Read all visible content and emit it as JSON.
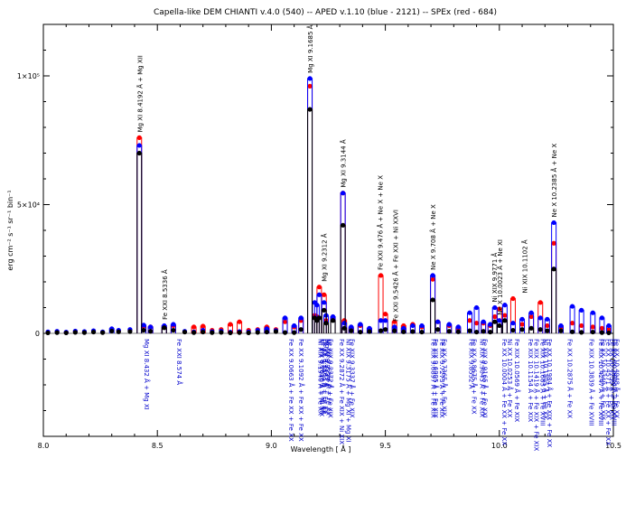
{
  "chart_data": {
    "type": "line",
    "title": "Capella-like DEM  CHIANTI v.4.0 (540) -- APED v.1.10 (blue - 2121) -- SPEx (red - 684)",
    "xlabel": "Wavelength [ Å ]",
    "ylabel": "erg cm⁻² s⁻¹ sr⁻¹ bin⁻¹",
    "xlim": [
      8.0,
      10.5
    ],
    "ylim": [
      -40000,
      120000
    ],
    "x_ticks": [
      8.0,
      8.5,
      9.0,
      9.5,
      10.0,
      10.5
    ],
    "x_tick_labels": [
      "8.0",
      "8.5",
      "9.0",
      "9.5",
      "10.0",
      "10.5"
    ],
    "y_ticks": [
      0,
      50000,
      100000
    ],
    "y_tick_labels": [
      "0",
      "5×10⁴",
      "1×10⁵"
    ],
    "series": [
      {
        "color": "#000000",
        "x": [
          8.02,
          8.06,
          8.1,
          8.14,
          8.18,
          8.22,
          8.26,
          8.3,
          8.33,
          8.38,
          8.421,
          8.44,
          8.47,
          8.53,
          8.57,
          8.62,
          8.66,
          8.7,
          8.74,
          8.78,
          8.82,
          8.86,
          8.9,
          8.94,
          8.98,
          9.02,
          9.06,
          9.1,
          9.13,
          9.169,
          9.19,
          9.2,
          9.21,
          9.231,
          9.24,
          9.27,
          9.314,
          9.32,
          9.35,
          9.39,
          9.43,
          9.48,
          9.5,
          9.54,
          9.58,
          9.62,
          9.66,
          9.708,
          9.73,
          9.78,
          9.82,
          9.87,
          9.9,
          9.93,
          9.96,
          9.98,
          10.0,
          10.024,
          10.06,
          10.1,
          10.14,
          10.18,
          10.21,
          10.239,
          10.27,
          10.32,
          10.36,
          10.41,
          10.45,
          10.48
        ],
        "y": [
          200,
          300,
          200,
          400,
          300,
          500,
          300,
          900,
          600,
          700,
          70000,
          1200,
          800,
          2200,
          1200,
          500,
          300,
          500,
          300,
          400,
          200,
          300,
          200,
          400,
          500,
          700,
          300,
          300,
          1500,
          87000,
          6000,
          5000,
          6000,
          9000,
          4000,
          5000,
          42000,
          2000,
          1000,
          500,
          700,
          1000,
          1500,
          1000,
          600,
          700,
          500,
          13000,
          1500,
          800,
          600,
          1000,
          500,
          800,
          500,
          4500,
          3000,
          5000,
          1200,
          1500,
          2000,
          1500,
          1000,
          25000,
          1000,
          600,
          400,
          500,
          300,
          200
        ]
      },
      {
        "color": "#0000ff",
        "x": [
          8.02,
          8.06,
          8.1,
          8.14,
          8.18,
          8.22,
          8.26,
          8.3,
          8.33,
          8.38,
          8.421,
          8.44,
          8.47,
          8.53,
          8.57,
          8.62,
          8.66,
          8.7,
          8.74,
          8.78,
          8.82,
          8.86,
          8.9,
          8.94,
          8.98,
          9.02,
          9.06,
          9.1,
          9.13,
          9.169,
          9.19,
          9.2,
          9.21,
          9.231,
          9.24,
          9.27,
          9.314,
          9.32,
          9.35,
          9.39,
          9.43,
          9.48,
          9.5,
          9.54,
          9.58,
          9.62,
          9.66,
          9.708,
          9.73,
          9.78,
          9.82,
          9.87,
          9.9,
          9.93,
          9.96,
          9.98,
          10.0,
          10.024,
          10.06,
          10.1,
          10.14,
          10.18,
          10.21,
          10.239,
          10.27,
          10.32,
          10.36,
          10.41,
          10.45,
          10.48
        ],
        "y": [
          600,
          800,
          500,
          900,
          700,
          1000,
          600,
          1800,
          1200,
          1500,
          73000,
          3200,
          2500,
          3000,
          3500,
          800,
          600,
          1200,
          700,
          900,
          500,
          700,
          600,
          1200,
          1800,
          1100,
          6000,
          3000,
          6000,
          99000,
          12000,
          11000,
          15000,
          12000,
          7000,
          6500,
          54500,
          4000,
          2500,
          3500,
          2000,
          5000,
          5000,
          2500,
          2000,
          3000,
          3000,
          22500,
          4500,
          3500,
          2500,
          8000,
          10000,
          4500,
          3500,
          10000,
          5000,
          11000,
          4000,
          5500,
          8000,
          6000,
          5500,
          43000,
          3000,
          10500,
          9000,
          8000,
          6000,
          3000
        ]
      },
      {
        "color": "#ff0000",
        "x": [
          8.02,
          8.06,
          8.1,
          8.14,
          8.18,
          8.22,
          8.26,
          8.3,
          8.33,
          8.38,
          8.421,
          8.44,
          8.47,
          8.53,
          8.57,
          8.62,
          8.66,
          8.7,
          8.74,
          8.78,
          8.82,
          8.86,
          8.9,
          8.94,
          8.98,
          9.02,
          9.06,
          9.1,
          9.13,
          9.169,
          9.19,
          9.2,
          9.21,
          9.231,
          9.24,
          9.27,
          9.314,
          9.32,
          9.35,
          9.39,
          9.43,
          9.48,
          9.5,
          9.54,
          9.58,
          9.62,
          9.66,
          9.708,
          9.73,
          9.78,
          9.82,
          9.87,
          9.9,
          9.93,
          9.96,
          9.98,
          10.0,
          10.024,
          10.06,
          10.1,
          10.14,
          10.18,
          10.21,
          10.239,
          10.27,
          10.32,
          10.36,
          10.41,
          10.45,
          10.48
        ],
        "y": [
          500,
          700,
          400,
          800,
          600,
          900,
          500,
          1500,
          1000,
          1300,
          76000,
          2800,
          2500,
          2800,
          3000,
          700,
          2500,
          2800,
          1200,
          1500,
          3500,
          4500,
          1200,
          1500,
          2500,
          1500,
          4500,
          2500,
          5000,
          96000,
          7000,
          6500,
          18000,
          15000,
          5000,
          6000,
          54500,
          5000,
          2000,
          3000,
          1800,
          22500,
          7500,
          4500,
          3000,
          3500,
          2500,
          21000,
          4500,
          3000,
          2000,
          5000,
          4000,
          4000,
          3000,
          6500,
          9500,
          7000,
          13500,
          3500,
          6500,
          12000,
          3000,
          35000,
          2500,
          4000,
          3000,
          2500,
          2000,
          1500
        ]
      }
    ],
    "annotations_top": [
      {
        "x": 8.421,
        "y": 76000,
        "text": "Mg XI 8.4192 Å + Mg XII"
      },
      {
        "x": 8.53,
        "y": 3200,
        "text": "Fe XXI 8.5336 Å"
      },
      {
        "x": 9.169,
        "y": 99000,
        "text": "Mg XI 9.1685 Å"
      },
      {
        "x": 9.231,
        "y": 18000,
        "text": "Mg XI 9.2312 Å"
      },
      {
        "x": 9.314,
        "y": 54500,
        "text": "Mg XI 9.3144 Å"
      },
      {
        "x": 9.476,
        "y": 22500,
        "text": "Fe XXI 9.476 Å + Ne X + Ne X"
      },
      {
        "x": 9.5426,
        "y": 2500,
        "text": "Fe XXI 9.5426 Å + Fe XXI + Ni XXVI"
      },
      {
        "x": 9.708,
        "y": 22500,
        "text": "Ne X 9.708 Å + Ne X"
      },
      {
        "x": 9.977,
        "y": 10000,
        "text": "Ni XIX 9.9771 Å"
      },
      {
        "x": 10.0,
        "y": 5000,
        "text": "Ne X 10.0023 Å + Ne XI"
      },
      {
        "x": 10.11,
        "y": 13500,
        "text": "Ni XIX 10.1102 Å"
      },
      {
        "x": 10.2385,
        "y": 43000,
        "text": "Ne X 10.2385 Å + Ne X"
      }
    ],
    "annotations_bottom": [
      {
        "x": 8.432,
        "text": "Mg XI 8.432 Å + Mg XI"
      },
      {
        "x": 8.574,
        "text": "Fe XXI 8.574 Å"
      },
      {
        "x": 9.0663,
        "text": "Fe XX 9.0663 Å + Fe XX + Fe XX"
      },
      {
        "x": 9.1092,
        "text": "Fe XX 9.1092 Å + Fe XX + Fe XX"
      },
      {
        "x": 9.194,
        "text": "Ni XIX 9.1940 Å + Fe XX"
      },
      {
        "x": 9.201,
        "text": "Ni XIX 9.2010 Å + Ni XIX"
      },
      {
        "x": 9.209,
        "text": "Fe XX 9.2090 Å + Fe XX"
      },
      {
        "x": 9.2163,
        "text": "Fe XX 9.2163 Å + Fe XX"
      },
      {
        "x": 9.2237,
        "text": "Mg XI 9.2237 Å"
      },
      {
        "x": 9.2296,
        "text": "Ni XIX 9.2296 Å + Fe XX"
      },
      {
        "x": 9.2372,
        "text": "Fe XIX 9.2372 Å + Fe XIX"
      },
      {
        "x": 9.2872,
        "text": "Fe XX 9.2872 Å + Fe XIX + Ni XIX"
      },
      {
        "x": 9.3175,
        "text": "Ni XIX 9.3175 Å + Mg XI + Mg XI"
      },
      {
        "x": 9.3337,
        "text": "Fe XIX 9.3337 Å + Fe XIX"
      },
      {
        "x": 9.6897,
        "text": "Fe XIX 9.6897 Å + Fe XIX"
      },
      {
        "x": 9.6995,
        "text": "Fe XIX 9.6995 Å + Fe XIX"
      },
      {
        "x": 9.7273,
        "text": "Fe XIX 9.7273 Å + Fe XIX"
      },
      {
        "x": 9.7365,
        "text": "Fe XX 9.7365 Å + Fe XIX"
      },
      {
        "x": 9.8552,
        "text": "Fe XIX 9.8552 Å"
      },
      {
        "x": 9.8675,
        "text": "Fe XX 9.8675 Å + Fe XX"
      },
      {
        "x": 9.9045,
        "text": "Ni XIX 9.9045 Å + Fe XIX"
      },
      {
        "x": 9.9165,
        "text": "Fe XIX 9.9165 Å + Fe XXI"
      },
      {
        "x": 10.0004,
        "text": "Fe XX 10.0004 Å + Fe XX + Fe XX"
      },
      {
        "x": 10.0253,
        "text": "Ni XX 10.0253 Å + Fe XX"
      },
      {
        "x": 10.0569,
        "text": "Fe XIX 10.0569 Å + Fe XIX"
      },
      {
        "x": 10.1154,
        "text": "Fe XIX 10.1154 Å + Fe XIX"
      },
      {
        "x": 10.1419,
        "text": "Fe XIX 10.1419 Å + Fe XIX + Fe XIX"
      },
      {
        "x": 10.1683,
        "text": "Fe XIX 10.1683 Å + Fe XVIII"
      },
      {
        "x": 10.1805,
        "text": "Ni XIX 10.1805 Å + Fe XX"
      },
      {
        "x": 10.1984,
        "text": "Fe XX 10.1984 Å + Fe XIX + Fe XX"
      },
      {
        "x": 10.2875,
        "text": "Fe XX 10.2875 Å + Fe XX"
      },
      {
        "x": 10.3839,
        "text": "Fe XIX 10.3839 Å + Fe XVIII"
      },
      {
        "x": 10.4247,
        "text": "Fe XIX 10.4247 Å + Fe XVIII"
      },
      {
        "x": 10.4349,
        "text": "Fe XX 10.4349 Å + Fe XIX"
      },
      {
        "x": 10.4571,
        "text": "Fe XX 10.4571 Å + Fe XX + Fe XX"
      },
      {
        "x": 10.4739,
        "text": "Fe XX 10.4739 Å + Fe XIX"
      },
      {
        "x": 10.4814,
        "text": "Fe XIX 10.4814 Å + Fe XVIII"
      },
      {
        "x": 10.4948,
        "text": "Fe XX 10.4948 Å + Fe XX"
      }
    ]
  }
}
